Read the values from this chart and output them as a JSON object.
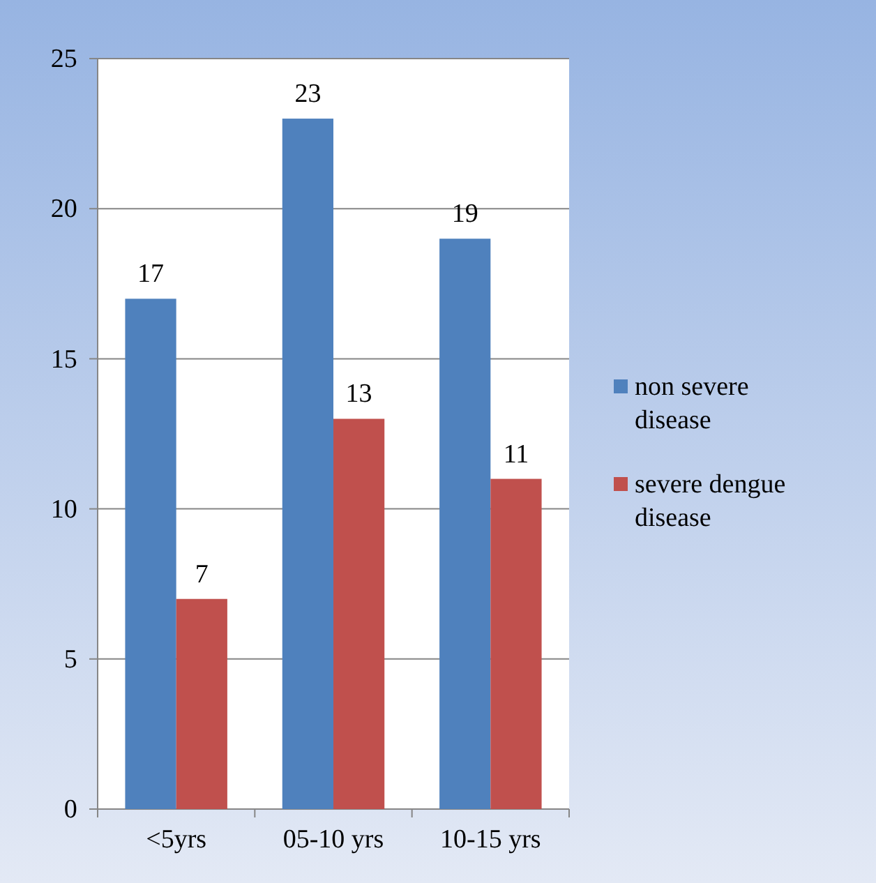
{
  "chart_data": {
    "type": "bar",
    "categories": [
      "<5yrs",
      "05-10 yrs",
      "10-15 yrs"
    ],
    "series": [
      {
        "name": "non severe disease",
        "color": "#4f81bd",
        "values": [
          17,
          23,
          19
        ]
      },
      {
        "name": "severe dengue disease",
        "color": "#c0504d",
        "values": [
          7,
          13,
          11
        ]
      }
    ],
    "ylim": [
      0,
      25
    ],
    "yticks": [
      0,
      5,
      10,
      15,
      20,
      25
    ],
    "grid": "y",
    "legend": "right",
    "data_labels": true
  }
}
